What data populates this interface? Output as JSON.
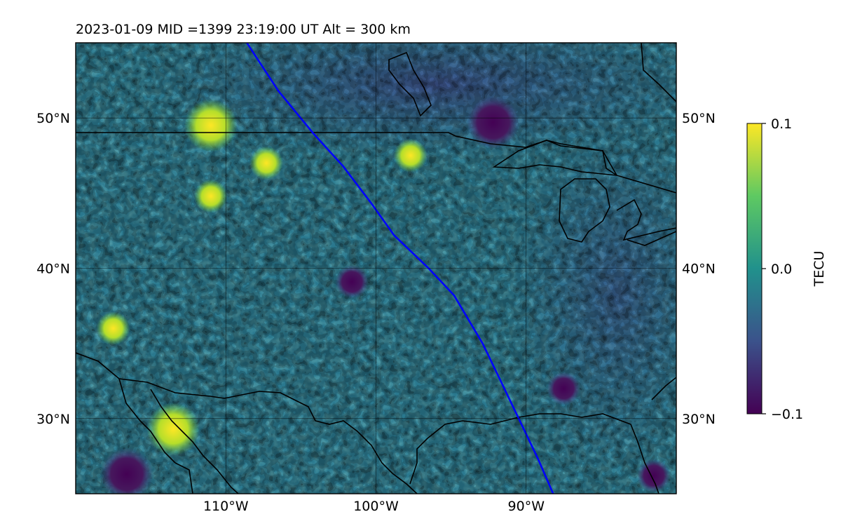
{
  "chart_data": {
    "type": "heatmap",
    "title": "2023-01-09  MID =1399    23:19:00  UT  Alt = 300 km",
    "map": {
      "lon_range": [
        -120,
        -80
      ],
      "lat_range": [
        25,
        55
      ],
      "grid": true,
      "lat_ticks": [
        {
          "value": 50,
          "label": "50°N"
        },
        {
          "value": 40,
          "label": "40°N"
        },
        {
          "value": 30,
          "label": "30°N"
        }
      ],
      "lon_ticks": [
        {
          "value": -110,
          "label": "110°W"
        },
        {
          "value": -100,
          "label": "100°W"
        },
        {
          "value": -90,
          "label": "90°W"
        }
      ]
    },
    "colorbar": {
      "label": "TECU",
      "range": [
        -0.1,
        0.1
      ],
      "colormap": "viridis",
      "ticks": [
        {
          "value": 0.1,
          "label": "0.1"
        },
        {
          "value": 0.0,
          "label": "0.0"
        },
        {
          "value": -0.1,
          "label": "−0.1"
        }
      ]
    },
    "track": {
      "color": "#0000ff",
      "points": [
        [
          -108.6,
          55
        ],
        [
          -106.5,
          51.8
        ],
        [
          -104.2,
          49
        ],
        [
          -102.2,
          46.8
        ],
        [
          -100.3,
          44.3
        ],
        [
          -98.8,
          42.2
        ],
        [
          -96.5,
          40
        ],
        [
          -94.8,
          38.2
        ],
        [
          -92.9,
          35
        ],
        [
          -91.6,
          32.3
        ],
        [
          -90.3,
          29.6
        ],
        [
          -89.2,
          27.3
        ],
        [
          -88.2,
          25
        ]
      ]
    },
    "features": [
      {
        "lon": -116.6,
        "lat": 26.3,
        "value": -0.1
      },
      {
        "lon": -92.2,
        "lat": 49.7,
        "value": -0.1
      },
      {
        "lon": -101.6,
        "lat": 39.1,
        "value": -0.09
      },
      {
        "lon": -111.0,
        "lat": 49.5,
        "value": 0.1
      },
      {
        "lon": -113.5,
        "lat": 29.3,
        "value": 0.1
      },
      {
        "lon": -111.0,
        "lat": 44.8,
        "value": 0.09
      },
      {
        "lon": -107.3,
        "lat": 47.0,
        "value": 0.08
      },
      {
        "lon": -117.5,
        "lat": 36.0,
        "value": 0.09
      },
      {
        "lon": -97.7,
        "lat": 47.5,
        "value": 0.09
      },
      {
        "lon": -87.5,
        "lat": 32.0,
        "value": -0.08
      },
      {
        "lon": -81.5,
        "lat": 26.2,
        "value": -0.08
      }
    ]
  }
}
